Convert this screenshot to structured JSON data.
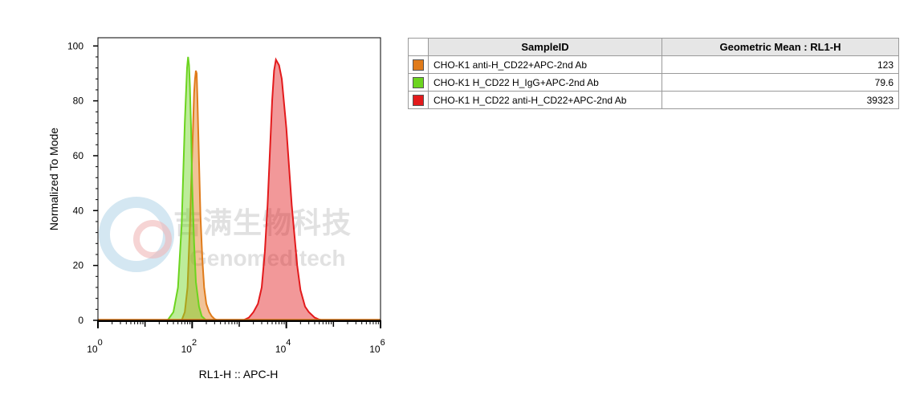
{
  "chart_data": {
    "type": "area",
    "xlabel": "RL1-H :: APC-H",
    "ylabel": "Normalized To Mode",
    "x_scale": "log",
    "xlim": [
      1,
      1000000
    ],
    "ylim": [
      0,
      103
    ],
    "x_ticks": [
      {
        "value": 1,
        "base": "10",
        "exp": "0"
      },
      {
        "value": 100,
        "base": "10",
        "exp": "2"
      },
      {
        "value": 10000,
        "base": "10",
        "exp": "4"
      },
      {
        "value": 1000000,
        "base": "10",
        "exp": "6"
      }
    ],
    "y_ticks": [
      0,
      20,
      40,
      60,
      80,
      100
    ],
    "series": [
      {
        "color": "#e07b1a",
        "x": [
          60,
          70,
          80,
          90,
          100,
          110,
          115,
          120,
          125,
          130,
          140,
          150,
          165,
          180,
          200,
          230,
          260,
          300,
          350
        ],
        "y": [
          0,
          3,
          12,
          35,
          60,
          83,
          88,
          91,
          90,
          80,
          58,
          38,
          22,
          12,
          6,
          3,
          1.5,
          0.5,
          0
        ]
      },
      {
        "color": "#6cd41f",
        "x": [
          30,
          40,
          50,
          60,
          70,
          78,
          82,
          86,
          90,
          95,
          100,
          110,
          120,
          140,
          160,
          200
        ],
        "y": [
          0,
          3,
          12,
          35,
          72,
          92,
          96,
          93,
          85,
          70,
          50,
          28,
          14,
          5,
          1.5,
          0
        ]
      },
      {
        "color": "#e31a1c",
        "x": [
          1200,
          1600,
          2000,
          2500,
          3000,
          3500,
          4000,
          4500,
          5000,
          5500,
          6000,
          7000,
          8000,
          10000,
          13000,
          17000,
          20000,
          25000,
          30000,
          40000,
          50000,
          60000
        ],
        "y": [
          0,
          1,
          3,
          6,
          12,
          25,
          42,
          62,
          80,
          91,
          95,
          93,
          88,
          70,
          42,
          20,
          11,
          5,
          3,
          1,
          0.3,
          0
        ]
      }
    ]
  },
  "table": {
    "headers": [
      "SampleID",
      "Geometric Mean : RL1-H"
    ],
    "rows": [
      {
        "color": "#e07b1a",
        "name": "CHO-K1 anti-H_CD22+APC-2nd Ab",
        "value": "123"
      },
      {
        "color": "#6cd41f",
        "name": "CHO-K1 H_CD22 H_IgG+APC-2nd Ab",
        "value": "79.6"
      },
      {
        "color": "#e31a1c",
        "name": "CHO-K1 H_CD22 anti-H_CD22+APC-2nd Ab",
        "value": "39323"
      }
    ]
  },
  "watermark": {
    "cn": "吉满生物科技",
    "en": "Genomeditech"
  }
}
